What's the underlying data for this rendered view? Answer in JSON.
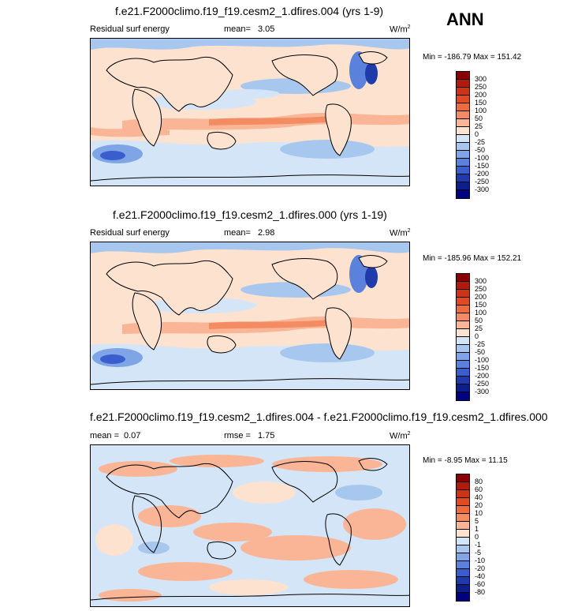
{
  "season": "ANN",
  "units_base": "W/m",
  "units_exp": "2",
  "panels": [
    {
      "title": "f.e21.F2000climo.f19_f19.cesm2_1.dfires.004 (yrs 1-9)",
      "variable": "Residual surf energy",
      "stat_label": "mean=",
      "stat_value": "3.05",
      "minmax": "Min = -186.79 Max = 151.42",
      "levels": [
        "300",
        "250",
        "200",
        "150",
        "100",
        "50",
        "25",
        "0",
        "-25",
        "-50",
        "-100",
        "-150",
        "-200",
        "-250",
        "-300"
      ]
    },
    {
      "title": "f.e21.F2000climo.f19_f19.cesm2_1.dfires.000 (yrs 1-19)",
      "variable": "Residual surf energy",
      "stat_label": "mean=",
      "stat_value": "2.98",
      "minmax": "Min = -185.96 Max = 152.21",
      "levels": [
        "300",
        "250",
        "200",
        "150",
        "100",
        "50",
        "25",
        "0",
        "-25",
        "-50",
        "-100",
        "-150",
        "-200",
        "-250",
        "-300"
      ]
    },
    {
      "title": "f.e21.F2000climo.f19_f19.cesm2_1.dfires.004 - f.e21.F2000climo.f19_f19.cesm2_1.dfires.000",
      "mean_label": "mean =",
      "mean_value": "0.07",
      "rmse_label": "rmse =",
      "rmse_value": "1.75",
      "minmax": "Min = -8.95 Max = 11.15",
      "levels": [
        "80",
        "60",
        "40",
        "20",
        "10",
        "5",
        "1",
        "0",
        "-1",
        "-5",
        "-10",
        "-20",
        "-40",
        "-60",
        "-80"
      ]
    }
  ],
  "colors": {
    "scale": [
      "#8b0000",
      "#b01b0c",
      "#cd3316",
      "#e24a24",
      "#ef6a3f",
      "#f48c63",
      "#f9b596",
      "#fde2cf",
      "#d4e5f7",
      "#a8c7ef",
      "#7fa5e6",
      "#5a82dc",
      "#3a5ecd",
      "#1f3aaa",
      "#0d1f8a",
      "#000080"
    ],
    "land_pos": "#fde2cf",
    "ocean_neg": "#d4e5f7"
  }
}
